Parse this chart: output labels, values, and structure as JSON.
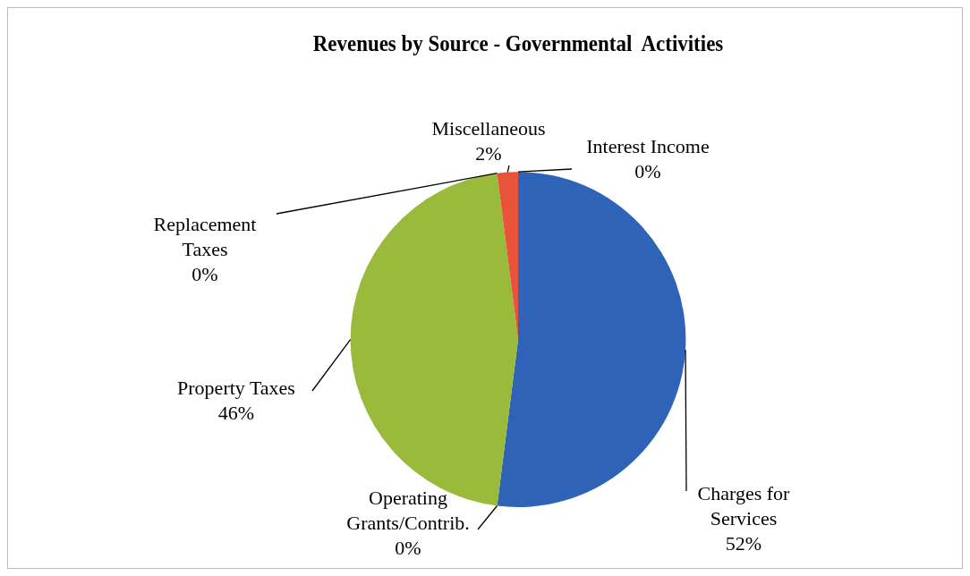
{
  "chart_data": {
    "type": "pie",
    "title": "Revenues by Source - Governmental  Activities",
    "categories": [
      "Charges for Services",
      "Operating Grants/Contrib.",
      "Property Taxes",
      "Replacement Taxes",
      "Miscellaneous",
      "Interest Income"
    ],
    "values": [
      52,
      0,
      46,
      0,
      2,
      0
    ],
    "value_labels": [
      "52%",
      "0%",
      "46%",
      "0%",
      "2%",
      "0%"
    ],
    "colors": [
      "#2e63b8",
      "#c0504d",
      "#9aba3c",
      "#6a4c9c",
      "#e8533a",
      "#4bacc6"
    ]
  }
}
